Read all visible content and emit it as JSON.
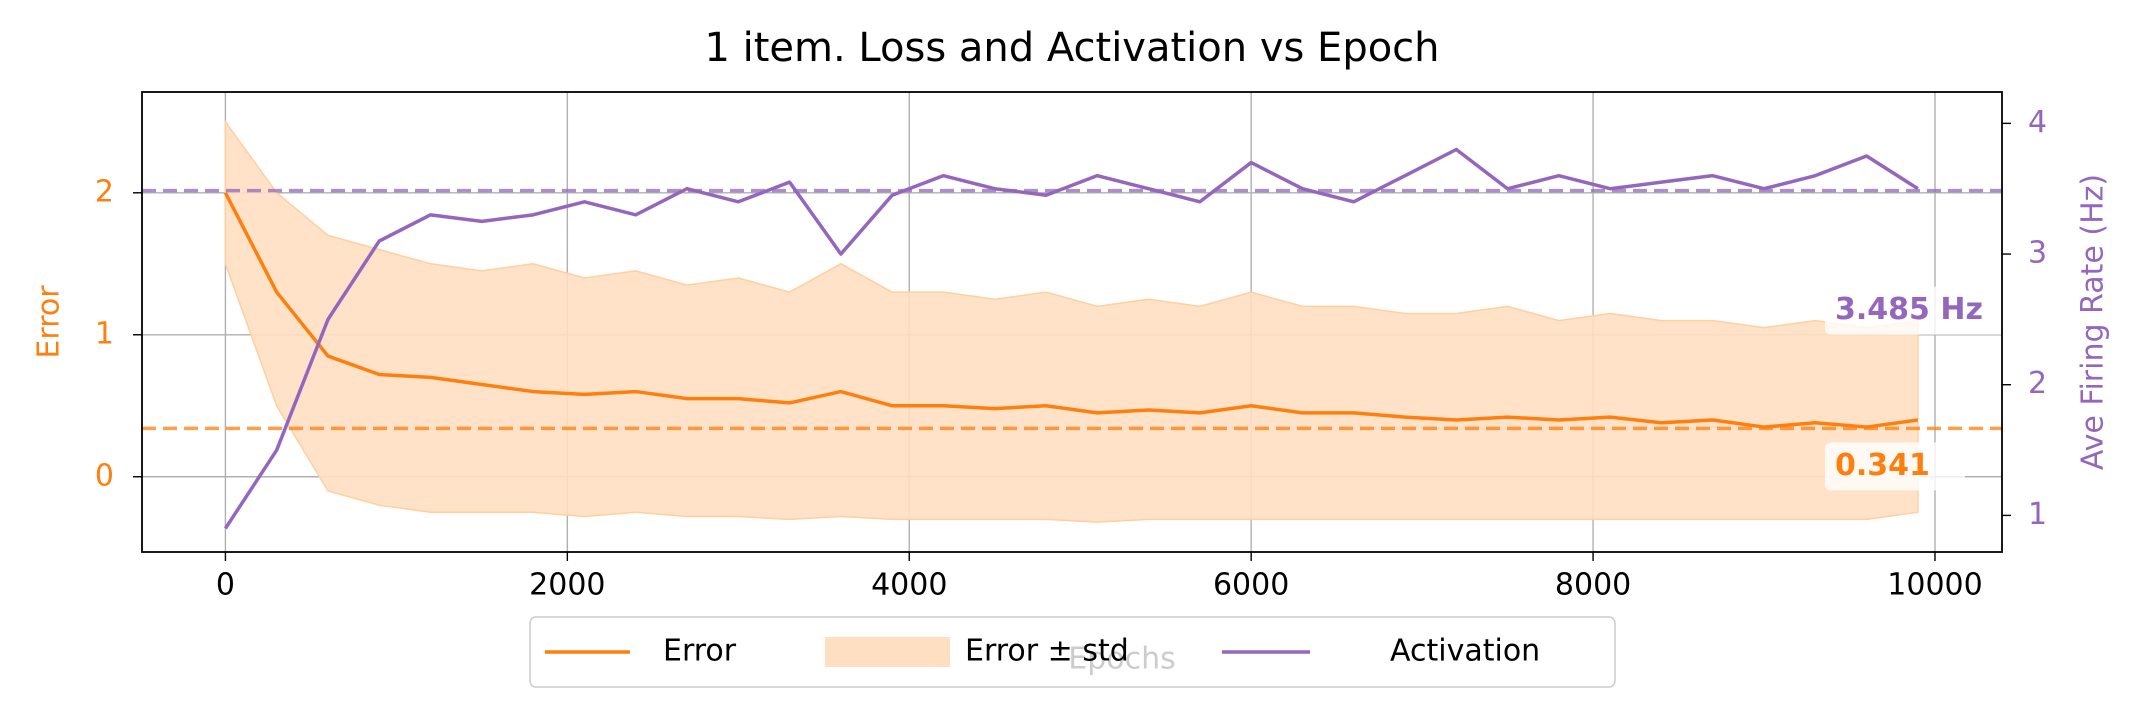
{
  "chart_data": {
    "type": "line",
    "title": "1 item. Loss and Activation vs Epoch",
    "x_label": "Epochs",
    "y_label": "Error",
    "y2_label": "Ave Firing Rate (Hz)",
    "x": [
      0,
      300,
      600,
      900,
      1200,
      1500,
      1800,
      2100,
      2400,
      2700,
      3000,
      3300,
      3600,
      3900,
      4200,
      4500,
      4800,
      5100,
      5400,
      5700,
      6000,
      6300,
      6600,
      6900,
      7200,
      7500,
      7800,
      8100,
      8400,
      8700,
      9000,
      9300,
      9600,
      9900
    ],
    "series": [
      {
        "name": "Error",
        "color": "#ff7f0e",
        "values": [
          2.0,
          1.3,
          0.85,
          0.72,
          0.7,
          0.65,
          0.6,
          0.58,
          0.6,
          0.55,
          0.55,
          0.52,
          0.6,
          0.5,
          0.5,
          0.48,
          0.5,
          0.45,
          0.47,
          0.45,
          0.5,
          0.45,
          0.45,
          0.42,
          0.4,
          0.42,
          0.4,
          0.42,
          0.38,
          0.4,
          0.35,
          0.38,
          0.35,
          0.4
        ]
      },
      {
        "name": "Activation",
        "color": "#9467bd",
        "axis": "y2",
        "values": [
          0.9,
          1.5,
          2.5,
          3.1,
          3.3,
          3.25,
          3.3,
          3.4,
          3.3,
          3.5,
          3.4,
          3.55,
          3.0,
          3.45,
          3.6,
          3.5,
          3.45,
          3.6,
          3.5,
          3.4,
          3.7,
          3.5,
          3.4,
          3.6,
          3.8,
          3.5,
          3.6,
          3.5,
          3.55,
          3.6,
          3.5,
          3.6,
          3.75,
          3.5
        ]
      }
    ],
    "band": {
      "name": "Error ± std",
      "color": "#ffdfc2",
      "upper": [
        2.5,
        2.0,
        1.7,
        1.6,
        1.5,
        1.45,
        1.5,
        1.4,
        1.45,
        1.35,
        1.4,
        1.3,
        1.5,
        1.3,
        1.3,
        1.25,
        1.3,
        1.2,
        1.25,
        1.2,
        1.3,
        1.2,
        1.2,
        1.15,
        1.15,
        1.2,
        1.1,
        1.15,
        1.1,
        1.1,
        1.05,
        1.1,
        1.05,
        1.1
      ],
      "lower": [
        1.5,
        0.5,
        -0.1,
        -0.2,
        -0.25,
        -0.25,
        -0.25,
        -0.28,
        -0.25,
        -0.28,
        -0.28,
        -0.3,
        -0.28,
        -0.3,
        -0.3,
        -0.3,
        -0.3,
        -0.32,
        -0.3,
        -0.3,
        -0.3,
        -0.3,
        -0.3,
        -0.3,
        -0.3,
        -0.3,
        -0.3,
        -0.3,
        -0.3,
        -0.3,
        -0.3,
        -0.3,
        -0.3,
        -0.25
      ]
    },
    "hlines": [
      {
        "value": 0.341,
        "color": "#ff7f0e"
      },
      {
        "value": 3.485,
        "label": "3.485 Hz",
        "color": "#9467bd",
        "axis": "y2"
      }
    ],
    "xlim": [
      -488,
      10392
    ],
    "xticks": [
      0,
      2000,
      4000,
      6000,
      8000,
      10000
    ],
    "ylim": [
      -0.53,
      2.71
    ],
    "yticks": [
      0,
      1,
      2
    ],
    "y2lim": [
      0.72,
      4.24
    ],
    "y2ticks": [
      1,
      2,
      3,
      4
    ],
    "grid": true,
    "legend": "lower center"
  }
}
